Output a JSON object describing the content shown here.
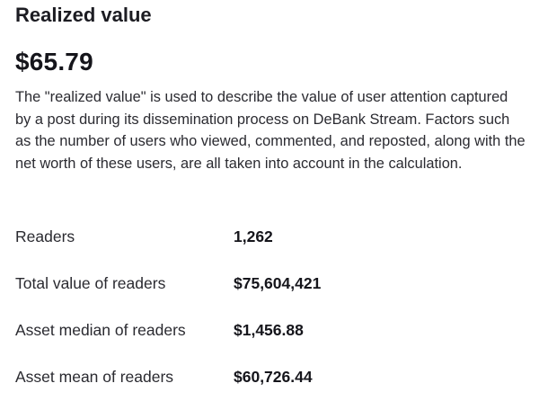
{
  "section": {
    "title": "Realized value",
    "amount": "$65.79",
    "description": "The \"realized value\" is used to describe the value of user attention captured by a post during its dissemination process on DeBank Stream. Factors such as the number of users who viewed, commented, and reposted, along with the net worth of these users, are all taken into account in the calculation."
  },
  "stats": [
    {
      "label": "Readers",
      "value": "1,262"
    },
    {
      "label": "Total value of readers",
      "value": "$75,604,421"
    },
    {
      "label": "Asset median of readers",
      "value": "$1,456.88"
    },
    {
      "label": "Asset mean of readers",
      "value": "$60,726.44"
    }
  ]
}
